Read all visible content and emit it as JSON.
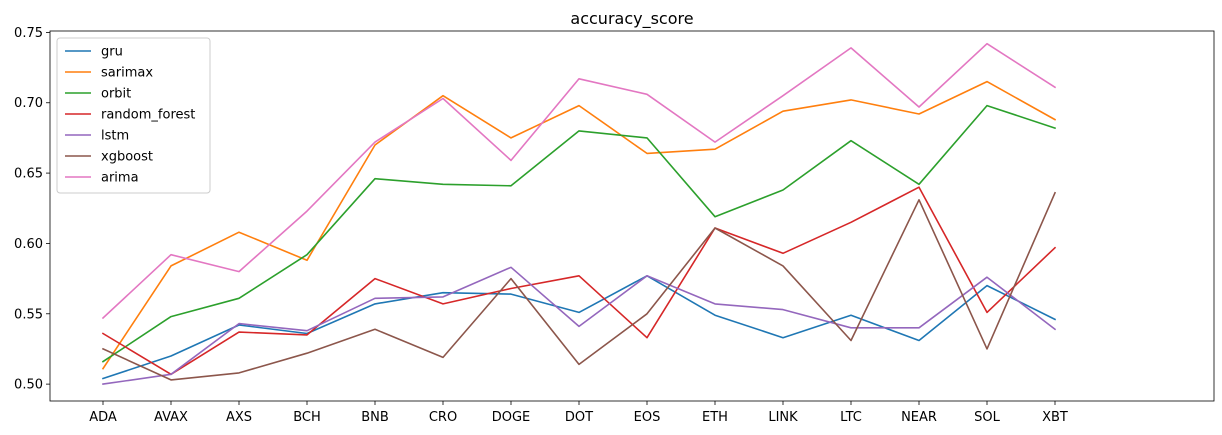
{
  "chart_data": {
    "type": "line",
    "title": "accuracy_score",
    "xlabel": "",
    "ylabel": "",
    "categories": [
      "ADA",
      "AVAX",
      "AXS",
      "BCH",
      "BNB",
      "CRO",
      "DOGE",
      "DOT",
      "EOS",
      "ETH",
      "LINK",
      "LTC",
      "NEAR",
      "SOL",
      "XBT"
    ],
    "ylim": [
      0.488,
      0.751
    ],
    "yticks": [
      0.5,
      0.55,
      0.6,
      0.65,
      0.7,
      0.75
    ],
    "ytick_labels": [
      "0.50",
      "0.55",
      "0.60",
      "0.65",
      "0.70",
      "0.75"
    ],
    "grid": false,
    "legend_position": "upper-left",
    "series": [
      {
        "name": "gru",
        "color": "#1f77b4",
        "values": [
          0.504,
          0.52,
          0.542,
          0.536,
          0.557,
          0.565,
          0.564,
          0.551,
          0.577,
          0.549,
          0.533,
          0.549,
          0.531,
          0.57,
          0.546
        ]
      },
      {
        "name": "sarimax",
        "color": "#ff7f0e",
        "values": [
          0.511,
          0.584,
          0.608,
          0.588,
          0.67,
          0.705,
          0.675,
          0.698,
          0.664,
          0.667,
          0.694,
          0.702,
          0.692,
          0.715,
          0.688
        ]
      },
      {
        "name": "orbit",
        "color": "#2ca02c",
        "values": [
          0.516,
          0.548,
          0.561,
          0.592,
          0.646,
          0.642,
          0.641,
          0.68,
          0.675,
          0.619,
          0.638,
          0.673,
          0.642,
          0.698,
          0.682
        ]
      },
      {
        "name": "random_forest",
        "color": "#d62728",
        "values": [
          0.536,
          0.507,
          0.537,
          0.535,
          0.575,
          0.557,
          0.568,
          0.577,
          0.533,
          0.611,
          0.593,
          0.615,
          0.64,
          0.551,
          0.597
        ]
      },
      {
        "name": "lstm",
        "color": "#9467bd",
        "values": [
          0.5,
          0.507,
          0.543,
          0.538,
          0.561,
          0.562,
          0.583,
          0.541,
          0.577,
          0.557,
          0.553,
          0.54,
          0.54,
          0.576,
          0.539
        ]
      },
      {
        "name": "xgboost",
        "color": "#8c564b",
        "values": [
          0.525,
          0.503,
          0.508,
          0.522,
          0.539,
          0.519,
          0.575,
          0.514,
          0.55,
          0.611,
          0.584,
          0.531,
          0.631,
          0.525,
          0.636
        ]
      },
      {
        "name": "arima",
        "color": "#e377c2",
        "values": [
          0.547,
          0.592,
          0.58,
          0.623,
          0.672,
          0.703,
          0.659,
          0.717,
          0.706,
          0.672,
          0.705,
          0.739,
          0.697,
          0.742,
          0.711
        ]
      }
    ]
  }
}
